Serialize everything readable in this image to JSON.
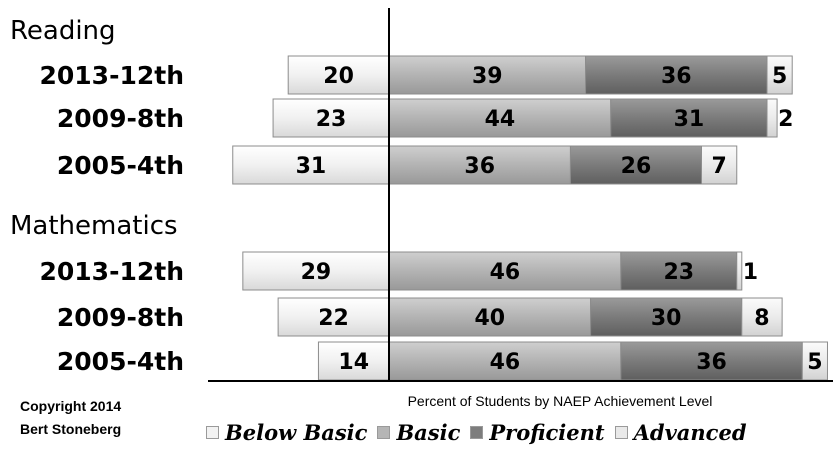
{
  "chart_data": {
    "type": "bar",
    "subtype": "diverging-stacked-horizontal",
    "xlabel": "Percent of Students by NAEP Achievement Level",
    "series": [
      {
        "name": "Below Basic",
        "color": "#f2f2f2"
      },
      {
        "name": "Basic",
        "color": "#b5b5b5"
      },
      {
        "name": "Proficient",
        "color": "#7d7d7d"
      },
      {
        "name": "Advanced",
        "color": "#e9e9e9"
      }
    ],
    "groups": [
      {
        "name": "Reading",
        "rows": [
          {
            "label": "2013-12th",
            "values": [
              20,
              39,
              36,
              5
            ]
          },
          {
            "label": "2009-8th",
            "values": [
              23,
              44,
              31,
              2
            ]
          },
          {
            "label": "2005-4th",
            "values": [
              31,
              36,
              26,
              7
            ]
          }
        ]
      },
      {
        "name": "Mathematics",
        "rows": [
          {
            "label": "2013-12th",
            "values": [
              29,
              46,
              23,
              1
            ]
          },
          {
            "label": "2009-8th",
            "values": [
              22,
              40,
              30,
              8
            ]
          },
          {
            "label": "2005-4th",
            "values": [
              14,
              46,
              36,
              5
            ]
          }
        ]
      }
    ]
  },
  "copyright": {
    "line1": "Copyright 2014",
    "line2": "Bert Stoneberg"
  }
}
